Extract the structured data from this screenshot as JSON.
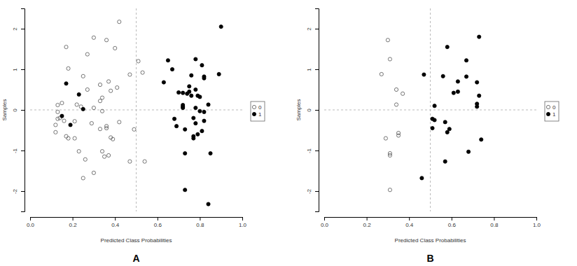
{
  "chart_data": [
    {
      "type": "scatter",
      "title": "A",
      "x_label": "Predicted Class Probabilities",
      "y_label": "Samples",
      "xlim": [
        0,
        1
      ],
      "ylim": [
        -2.5,
        2.5
      ],
      "xticks": [
        {
          "value": 0,
          "label": "0.0"
        },
        {
          "value": 0.2,
          "label": "0.2"
        },
        {
          "value": 0.4,
          "label": "0.4"
        },
        {
          "value": 0.6,
          "label": "0.6"
        },
        {
          "value": 0.8,
          "label": "0.8"
        },
        {
          "value": 1,
          "label": "1.0"
        }
      ],
      "yticks": [
        -2,
        -1,
        0,
        1,
        2
      ],
      "vlines": [
        0.5
      ],
      "hlines": [
        0
      ],
      "legend": "right",
      "series": [
        {
          "name": "0",
          "color": "#555555",
          "marker": "circle-open",
          "x": [
            0.42,
            0.3,
            0.36,
            0.17,
            0.4,
            0.27,
            0.18,
            0.51,
            0.53,
            0.47,
            0.25,
            0.37,
            0.33,
            0.41,
            0.38,
            0.27,
            0.15,
            0.13,
            0.34,
            0.33,
            0.22,
            0.3,
            0.24,
            0.34,
            0.13,
            0.14,
            0.13,
            0.16,
            0.12,
            0.21,
            0.29,
            0.42,
            0.36,
            0.36,
            0.33,
            0.12,
            0.49,
            0.17,
            0.18,
            0.21,
            0.38,
            0.39,
            0.34,
            0.23,
            0.35,
            0.37,
            0.26,
            0.47,
            0.54,
            0.3,
            0.25
          ],
          "values": [
            2.17,
            1.78,
            1.72,
            1.55,
            1.52,
            1.37,
            1.02,
            1.2,
            0.92,
            0.87,
            0.83,
            0.7,
            0.62,
            0.55,
            0.47,
            0.5,
            0.17,
            0.12,
            0.3,
            0.22,
            0.13,
            0.05,
            0.08,
            -0.03,
            -0.05,
            -0.2,
            -0.22,
            -0.27,
            -0.37,
            -0.28,
            -0.33,
            -0.3,
            -0.4,
            -0.45,
            -0.47,
            -0.55,
            -0.48,
            -0.65,
            -0.7,
            -0.7,
            -0.68,
            -0.72,
            -1.02,
            -1.02,
            -1.15,
            -1.12,
            -1.22,
            -1.27,
            -1.27,
            -1.55,
            -1.68
          ]
        },
        {
          "name": "1",
          "color": "#000000",
          "marker": "circle",
          "x": [
            0.9,
            0.65,
            0.78,
            0.67,
            0.81,
            0.76,
            0.82,
            0.82,
            0.89,
            0.63,
            0.75,
            0.78,
            0.75,
            0.7,
            0.72,
            0.74,
            0.76,
            0.79,
            0.8,
            0.84,
            0.72,
            0.72,
            0.72,
            0.78,
            0.8,
            0.82,
            0.77,
            0.68,
            0.82,
            0.78,
            0.69,
            0.73,
            0.81,
            0.79,
            0.77,
            0.77,
            0.85,
            0.73,
            0.73,
            0.84,
            0.17,
            0.23,
            0.25,
            0.15,
            0.19
          ],
          "values": [
            2.05,
            1.22,
            1.25,
            1.0,
            1.1,
            0.85,
            0.82,
            0.78,
            0.88,
            0.68,
            0.58,
            0.5,
            0.45,
            0.43,
            0.42,
            0.4,
            0.35,
            0.35,
            0.32,
            0.13,
            0.12,
            0.05,
            0.08,
            0.05,
            -0.03,
            -0.05,
            -0.2,
            -0.22,
            -0.27,
            -0.33,
            -0.4,
            -0.48,
            -0.52,
            -0.6,
            -0.65,
            -0.7,
            -1.07,
            -1.07,
            -1.97,
            -2.32,
            0.65,
            0.38,
            0.02,
            -0.15,
            -0.37
          ]
        }
      ]
    },
    {
      "type": "scatter",
      "title": "B",
      "x_label": "Predicted Class Probabilities",
      "y_label": "Samples",
      "xlim": [
        0,
        1
      ],
      "ylim": [
        -2.5,
        2.5
      ],
      "xticks": [
        {
          "value": 0,
          "label": "0.0"
        },
        {
          "value": 0.2,
          "label": "0.2"
        },
        {
          "value": 0.4,
          "label": "0.4"
        },
        {
          "value": 0.6,
          "label": "0.6"
        },
        {
          "value": 0.8,
          "label": "0.8"
        },
        {
          "value": 1,
          "label": "1.0"
        }
      ],
      "yticks": [
        -2,
        -1,
        0,
        1,
        2
      ],
      "vlines": [
        0.5
      ],
      "hlines": [
        0
      ],
      "legend": "right",
      "series": [
        {
          "name": "0",
          "color": "#555555",
          "marker": "circle-open",
          "x": [
            0.3,
            0.31,
            0.27,
            0.34,
            0.37,
            0.34,
            0.29,
            0.35,
            0.35,
            0.31,
            0.31,
            0.31
          ],
          "values": [
            1.72,
            1.25,
            0.88,
            0.5,
            0.4,
            0.13,
            -0.7,
            -0.57,
            -0.63,
            -1.07,
            -1.12,
            -1.97
          ]
        },
        {
          "name": "1",
          "color": "#000000",
          "marker": "circle",
          "x": [
            0.73,
            0.58,
            0.67,
            0.56,
            0.67,
            0.47,
            0.72,
            0.63,
            0.63,
            0.61,
            0.73,
            0.72,
            0.72,
            0.52,
            0.51,
            0.52,
            0.51,
            0.57,
            0.59,
            0.58,
            0.74,
            0.68,
            0.57,
            0.46
          ],
          "values": [
            1.8,
            1.55,
            1.22,
            0.83,
            0.82,
            0.87,
            0.68,
            0.7,
            0.45,
            0.42,
            0.35,
            0.15,
            0.08,
            0.1,
            -0.22,
            -0.25,
            -0.45,
            -0.3,
            -0.47,
            -0.55,
            -0.73,
            -1.03,
            -1.27,
            -1.68
          ]
        }
      ]
    }
  ]
}
